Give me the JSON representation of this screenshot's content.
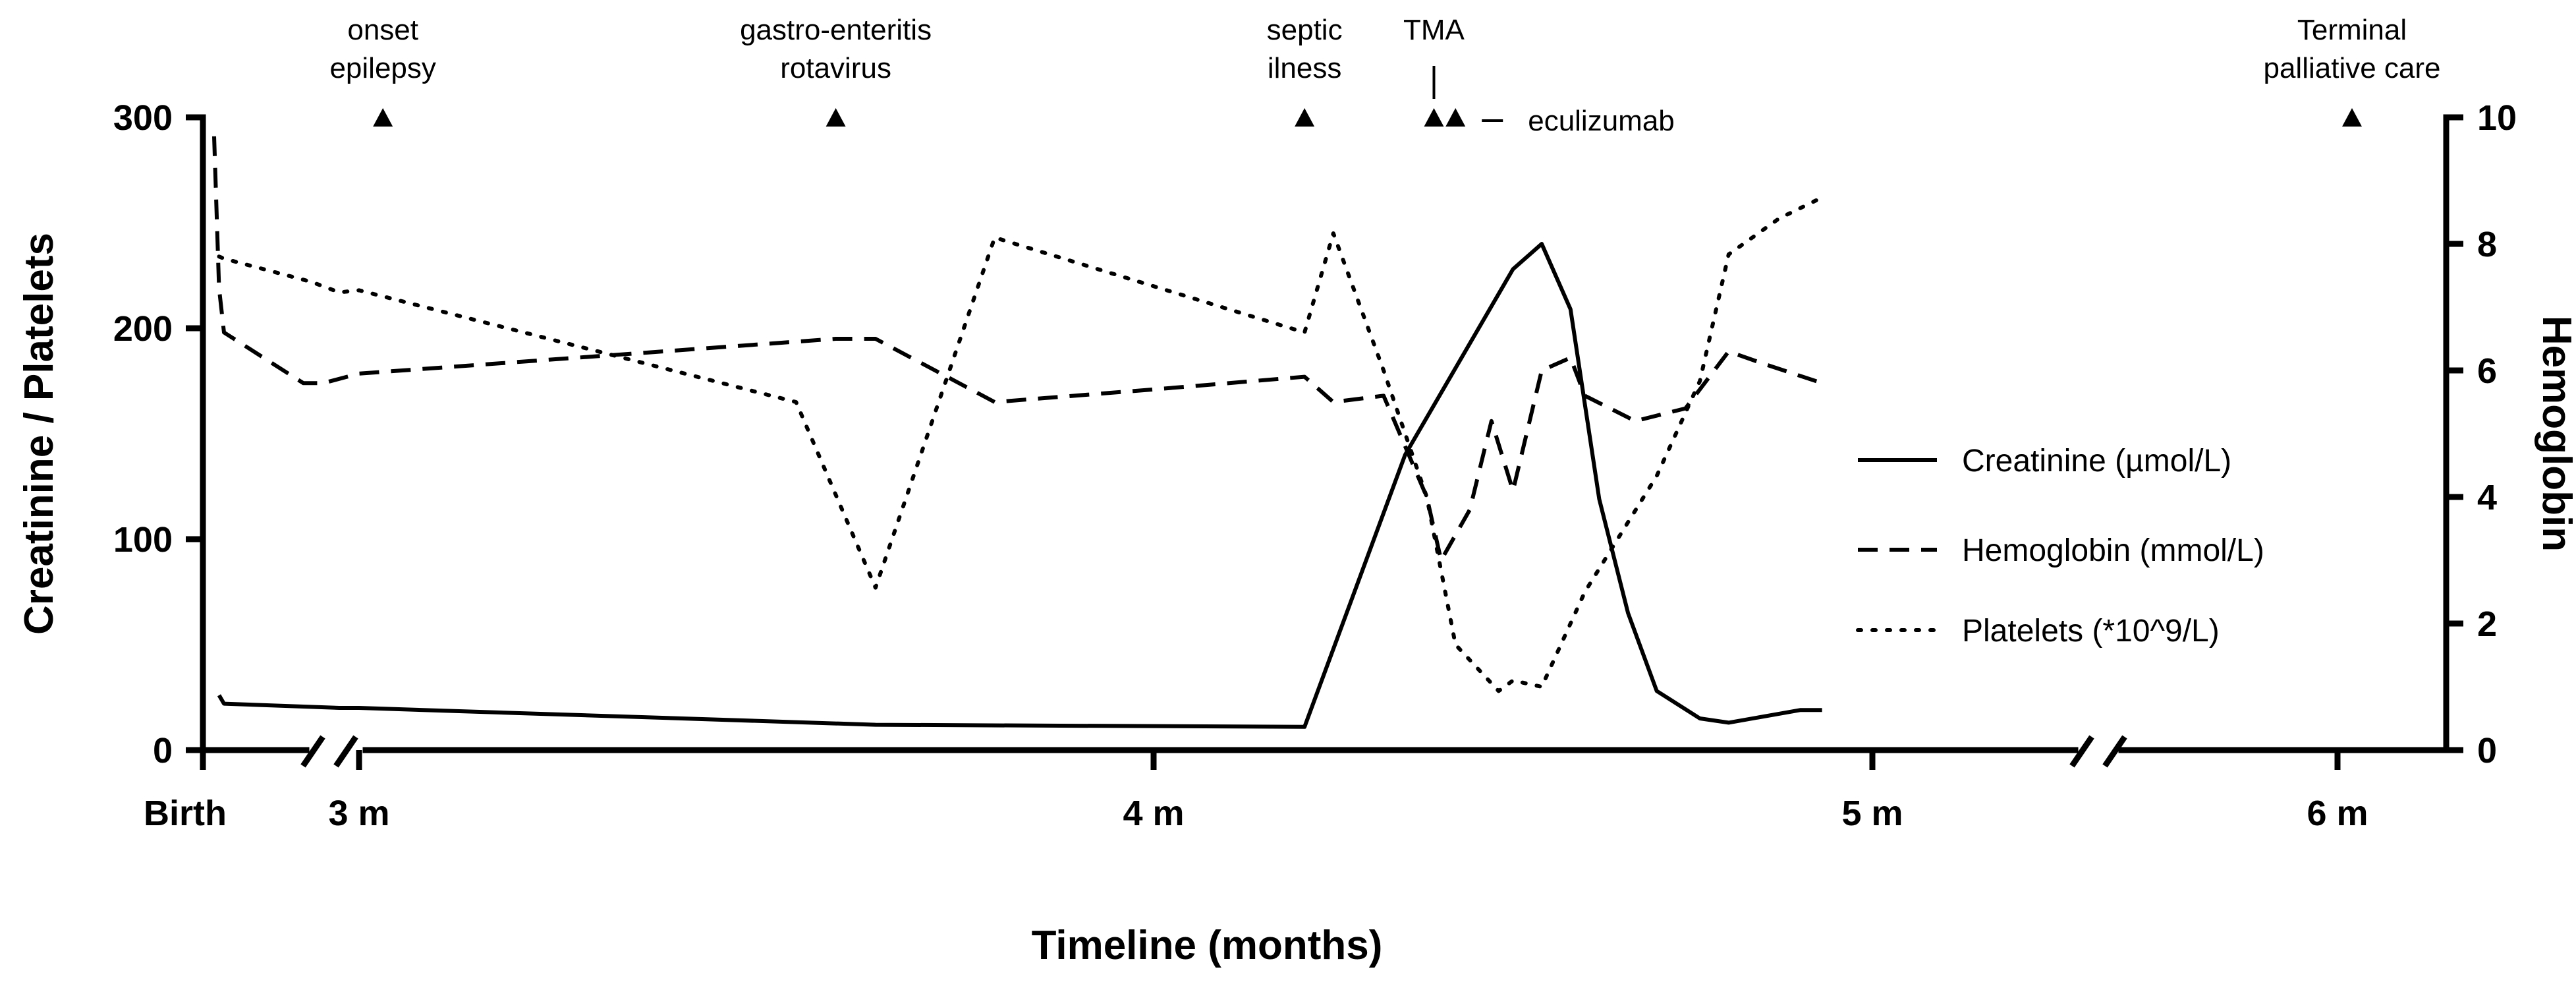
{
  "chart_data": {
    "type": "line",
    "xlabel": "Timeline (months)",
    "ylabel_left": "Creatinine / Platelets",
    "ylabel_right": "Hemoglobin",
    "ylim_left": [
      0,
      300
    ],
    "ylim_right": [
      0,
      10
    ],
    "left_ticks": [
      0,
      100,
      200,
      300
    ],
    "right_ticks": [
      0,
      2,
      4,
      6,
      8,
      10
    ],
    "x_ticks": [
      {
        "label": "Birth",
        "x": 0
      },
      {
        "label": "3 m",
        "x": 3
      },
      {
        "label": "4 m",
        "x": 4
      },
      {
        "label": "5 m",
        "x": 5
      },
      {
        "label": "6 m",
        "x": 6
      }
    ],
    "axis_breaks": [
      {
        "between": [
          0.02,
          2.95
        ]
      },
      {
        "between": [
          5.3,
          5.45
        ]
      }
    ],
    "events": [
      {
        "label_lines": [
          "onset",
          "epilepsy"
        ],
        "x": 3.03
      },
      {
        "label_lines": [
          "gastro-enteritis",
          "rotavirus"
        ],
        "x": 3.6
      },
      {
        "label_lines": [
          "septic",
          "ilness"
        ],
        "x": 4.21
      },
      {
        "label_lines": [
          "TMA"
        ],
        "x": 4.39,
        "marker_bar": true
      },
      {
        "label_lines": [],
        "x": 4.42,
        "side_label": "eculizumab"
      },
      {
        "label_lines": [
          "Terminal",
          "palliative care"
        ],
        "x": 6.04
      }
    ],
    "series": [
      {
        "name": "Creatinine (µmol/L)",
        "axis": "left",
        "style": "solid",
        "points": [
          [
            0.01,
            26
          ],
          [
            0.02,
            22
          ],
          [
            2.9,
            20
          ],
          [
            3.0,
            20
          ],
          [
            3.65,
            12
          ],
          [
            4.21,
            11
          ],
          [
            4.35,
            140
          ],
          [
            4.5,
            228
          ],
          [
            4.54,
            240
          ],
          [
            4.58,
            209
          ],
          [
            4.62,
            119
          ],
          [
            4.66,
            65
          ],
          [
            4.7,
            28
          ],
          [
            4.76,
            15
          ],
          [
            4.8,
            13
          ],
          [
            4.9,
            19
          ],
          [
            4.93,
            19
          ]
        ]
      },
      {
        "name": "Hemoglobin (mmol/L)",
        "axis": "right",
        "style": "dashed",
        "points": [
          [
            0.0,
            9.7
          ],
          [
            0.01,
            7.3
          ],
          [
            0.02,
            6.6
          ],
          [
            2.0,
            5.8
          ],
          [
            2.5,
            5.8
          ],
          [
            3.0,
            5.95
          ],
          [
            3.6,
            6.5
          ],
          [
            3.65,
            6.5
          ],
          [
            3.8,
            5.5
          ],
          [
            4.0,
            5.7
          ],
          [
            4.21,
            5.9
          ],
          [
            4.25,
            5.5
          ],
          [
            4.32,
            5.6
          ],
          [
            4.38,
            4.0
          ],
          [
            4.4,
            3.0
          ],
          [
            4.44,
            3.8
          ],
          [
            4.47,
            5.2
          ],
          [
            4.5,
            4.1
          ],
          [
            4.54,
            6.0
          ],
          [
            4.58,
            6.2
          ],
          [
            4.6,
            5.6
          ],
          [
            4.67,
            5.2
          ],
          [
            4.74,
            5.4
          ],
          [
            4.8,
            6.3
          ],
          [
            4.85,
            6.1
          ],
          [
            4.93,
            5.8
          ]
        ]
      },
      {
        "name": "Platelets (*10^9/L)",
        "axis": "left",
        "style": "dotted",
        "points": [
          [
            0.01,
            234
          ],
          [
            0.02,
            233
          ],
          [
            2.2,
            222
          ],
          [
            2.9,
            217
          ],
          [
            3.0,
            218
          ],
          [
            3.55,
            165
          ],
          [
            3.65,
            77
          ],
          [
            3.8,
            243
          ],
          [
            4.21,
            198
          ],
          [
            4.25,
            245
          ],
          [
            4.32,
            180
          ],
          [
            4.38,
            120
          ],
          [
            4.42,
            50
          ],
          [
            4.48,
            28
          ],
          [
            4.5,
            33
          ],
          [
            4.54,
            30
          ],
          [
            4.6,
            75
          ],
          [
            4.7,
            130
          ],
          [
            4.76,
            175
          ],
          [
            4.8,
            235
          ],
          [
            4.87,
            252
          ],
          [
            4.93,
            262
          ]
        ]
      }
    ],
    "legend_position": "right",
    "grid": false
  }
}
